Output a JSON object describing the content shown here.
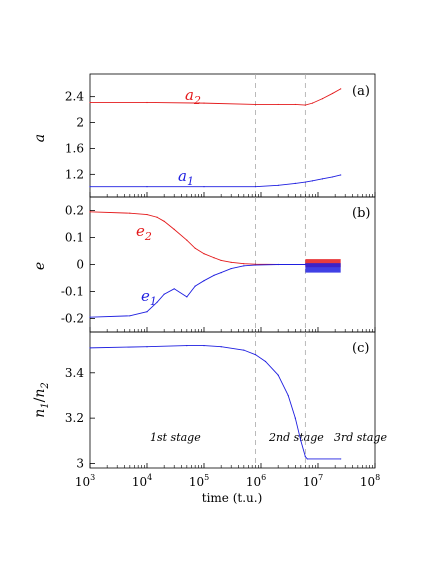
{
  "chart_data": [
    {
      "type": "line",
      "panel_label": "(a)",
      "ylabel": "a",
      "xscale": "log",
      "xlim": [
        1000,
        100000000
      ],
      "ylim": [
        0.85,
        2.75
      ],
      "yticks": [
        "1.2",
        "1.6",
        "2",
        "2.4"
      ],
      "yticks_values": [
        1.2,
        1.6,
        2.0,
        2.4
      ],
      "series": [
        {
          "name": "a2",
          "label_main": "a",
          "label_sub": "2",
          "color": "#e41a1c",
          "x": [
            1000,
            10000,
            100000,
            800000,
            2000000,
            4000000,
            6000000,
            8000000,
            12000000,
            18000000,
            25000000
          ],
          "y": [
            2.31,
            2.31,
            2.3,
            2.28,
            2.28,
            2.28,
            2.27,
            2.3,
            2.37,
            2.45,
            2.52
          ]
        },
        {
          "name": "a1",
          "label_main": "a",
          "label_sub": "1",
          "color": "#1f1fe0",
          "x": [
            1000,
            10000,
            100000,
            800000,
            2000000,
            4000000,
            6000000,
            8000000,
            12000000,
            18000000,
            25000000
          ],
          "y": [
            1.01,
            1.01,
            1.01,
            1.01,
            1.03,
            1.06,
            1.08,
            1.1,
            1.13,
            1.16,
            1.19
          ]
        }
      ],
      "stage_lines_x": [
        800000,
        6000000
      ]
    },
    {
      "type": "line",
      "panel_label": "(b)",
      "ylabel": "e",
      "xscale": "log",
      "xlim": [
        1000,
        100000000
      ],
      "ylim": [
        -0.25,
        0.25
      ],
      "yticks": [
        "-0.2",
        "-0.1",
        "0",
        "0.1",
        "0.2"
      ],
      "yticks_values": [
        -0.2,
        -0.1,
        0.0,
        0.1,
        0.2
      ],
      "series": [
        {
          "name": "e2",
          "label_main": "e",
          "label_sub": "2",
          "color": "#e41a1c",
          "x": [
            1000,
            5000,
            10000,
            15000,
            20000,
            30000,
            50000,
            70000,
            100000,
            150000,
            200000,
            300000,
            500000,
            800000,
            2000000,
            6000000
          ],
          "y": [
            0.195,
            0.19,
            0.185,
            0.175,
            0.16,
            0.13,
            0.09,
            0.06,
            0.04,
            0.025,
            0.015,
            0.008,
            0.003,
            0.001,
            0.0,
            0.0
          ],
          "oscillation_band_x": [
            6000000,
            25000000
          ],
          "oscillation_band_y": [
            -0.01,
            0.02
          ]
        },
        {
          "name": "e1",
          "label_main": "e",
          "label_sub": "1",
          "color": "#1f1fe0",
          "x": [
            1000,
            5000,
            10000,
            15000,
            20000,
            30000,
            50000,
            70000,
            100000,
            150000,
            200000,
            300000,
            500000,
            800000,
            2000000,
            6000000
          ],
          "y": [
            -0.195,
            -0.19,
            -0.175,
            -0.14,
            -0.11,
            -0.09,
            -0.12,
            -0.08,
            -0.06,
            -0.04,
            -0.03,
            -0.015,
            -0.005,
            -0.002,
            0.0,
            0.0
          ],
          "oscillation_band_x": [
            6000000,
            25000000
          ],
          "oscillation_band_y": [
            -0.03,
            0.005
          ]
        }
      ],
      "stage_lines_x": [
        800000,
        6000000
      ]
    },
    {
      "type": "line",
      "panel_label": "(c)",
      "ylabel_main": "n",
      "ylabel_sub1": "1",
      "ylabel_sep": "/",
      "ylabel_main2": "n",
      "ylabel_sub2": "2",
      "xscale": "log",
      "xlim": [
        1000,
        100000000
      ],
      "ylim": [
        2.98,
        3.58
      ],
      "yticks": [
        "3",
        "3.2",
        "3.4"
      ],
      "yticks_values": [
        3.0,
        3.2,
        3.4
      ],
      "xlabel": "time (t.u.)",
      "xticks_base": "10",
      "xticks_exp": [
        "3",
        "4",
        "5",
        "6",
        "7",
        "8"
      ],
      "xticks_values": [
        1000,
        10000,
        100000,
        1000000,
        10000000,
        100000000
      ],
      "series": [
        {
          "name": "n1/n2",
          "color": "#1f1fe0",
          "x": [
            1000,
            10000,
            50000,
            100000,
            200000,
            500000,
            800000,
            1200000,
            2000000,
            3000000,
            4000000,
            5000000,
            6000000,
            6500000,
            25000000
          ],
          "y": [
            3.51,
            3.515,
            3.52,
            3.52,
            3.515,
            3.5,
            3.48,
            3.45,
            3.39,
            3.3,
            3.2,
            3.1,
            3.03,
            3.02,
            3.02
          ]
        }
      ],
      "stage_lines_x": [
        800000,
        6000000
      ],
      "stage_labels": [
        "1st stage",
        "2nd stage",
        "3rd stage"
      ]
    }
  ]
}
